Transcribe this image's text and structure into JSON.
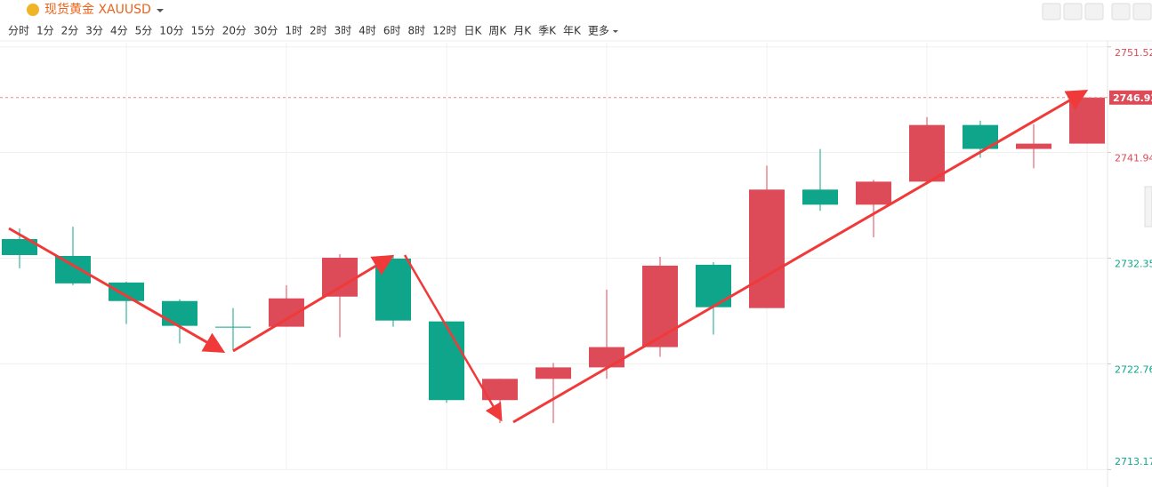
{
  "header": {
    "title": "现货黄金 XAUUSD",
    "periods": [
      "分时",
      "1分",
      "2分",
      "3分",
      "4分",
      "5分",
      "10分",
      "15分",
      "20分",
      "30分",
      "1时",
      "2时",
      "3时",
      "4时",
      "6时",
      "8时",
      "12时",
      "日K",
      "周K",
      "月K",
      "季K",
      "年K",
      "更多"
    ],
    "active_period": 10
  },
  "chart_data": {
    "type": "candlestick",
    "open": [
      2734.08,
      2732.55,
      2730.14,
      2728.46,
      2726.13,
      2726.13,
      2728.86,
      2732.31,
      2726.61,
      2719.47,
      2721.4,
      2722.44,
      2724.28,
      2731.75,
      2727.82,
      2738.57,
      2737.2,
      2739.29,
      2744.43,
      2742.26,
      2742.74
    ],
    "high": [
      2735.04,
      2735.2,
      2730.22,
      2728.62,
      2727.82,
      2729.9,
      2732.71,
      2732.63,
      2726.61,
      2721.4,
      2722.84,
      2729.5,
      2732.47,
      2731.99,
      2740.74,
      2742.26,
      2739.45,
      2745.15,
      2744.83,
      2744.51,
      2746.92
    ],
    "low": [
      2731.43,
      2729.9,
      2726.37,
      2724.61,
      2724.04,
      2726.13,
      2725.17,
      2726.13,
      2719.23,
      2717.38,
      2717.38,
      2721.4,
      2723.4,
      2725.41,
      2727.82,
      2736.64,
      2734.24,
      2739.29,
      2741.46,
      2740.5,
      2742.74
    ],
    "close": [
      2732.63,
      2730.06,
      2728.46,
      2726.21,
      2726.13,
      2728.7,
      2732.39,
      2726.69,
      2719.47,
      2721.4,
      2722.44,
      2724.28,
      2731.67,
      2727.9,
      2738.57,
      2737.2,
      2739.29,
      2744.43,
      2742.26,
      2742.74,
      2746.92
    ],
    "up_color": "#dd4a58",
    "down_color": "#0fa58a",
    "ylim": [
      2713.2,
      2751.9
    ],
    "yticks": [
      2751.52,
      2741.94,
      2732.35,
      2722.76,
      2713.17
    ],
    "ytick_colors": [
      "#dd4a58",
      "#dd4a58",
      "#0fa58a",
      "#0fa58a",
      "#0fa58a"
    ],
    "last_price": 2746.92,
    "grid": true
  }
}
